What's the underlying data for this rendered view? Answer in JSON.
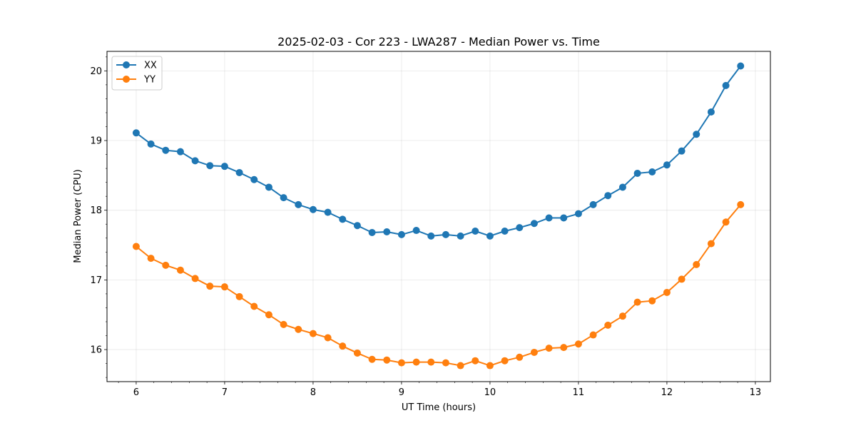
{
  "chart_data": {
    "type": "line",
    "title": "2025-02-03 - Cor 223 - LWA287 - Median Power vs. Time",
    "xlabel": "UT Time (hours)",
    "ylabel": "Median Power (CPU)",
    "xlim": [
      5.67,
      13.17
    ],
    "ylim": [
      15.54,
      20.28
    ],
    "xticks": [
      6,
      7,
      8,
      9,
      10,
      11,
      12,
      13
    ],
    "yticks": [
      16,
      17,
      18,
      19,
      20
    ],
    "grid": true,
    "legend_position": "top-left",
    "x": [
      6.0,
      6.1667,
      6.3333,
      6.5,
      6.6667,
      6.8333,
      7.0,
      7.1667,
      7.3333,
      7.5,
      7.6667,
      7.8333,
      8.0,
      8.1667,
      8.3333,
      8.5,
      8.6667,
      8.8333,
      9.0,
      9.1667,
      9.3333,
      9.5,
      9.6667,
      9.8333,
      10.0,
      10.1667,
      10.3333,
      10.5,
      10.6667,
      10.8333,
      11.0,
      11.1667,
      11.3333,
      11.5,
      11.6667,
      11.8333,
      12.0,
      12.1667,
      12.3333,
      12.5,
      12.6667,
      12.8333
    ],
    "series": [
      {
        "name": "XX",
        "color": "#1f77b4",
        "values": [
          19.11,
          18.95,
          18.86,
          18.84,
          18.71,
          18.64,
          18.63,
          18.54,
          18.44,
          18.33,
          18.18,
          18.08,
          18.01,
          17.97,
          17.87,
          17.78,
          17.68,
          17.69,
          17.65,
          17.71,
          17.63,
          17.65,
          17.63,
          17.7,
          17.63,
          17.7,
          17.75,
          17.81,
          17.89,
          17.89,
          17.95,
          18.08,
          18.21,
          18.33,
          18.53,
          18.55,
          18.65,
          18.85,
          19.09,
          19.41,
          19.79,
          20.07
        ]
      },
      {
        "name": "YY",
        "color": "#ff7f0e",
        "values": [
          17.48,
          17.31,
          17.21,
          17.14,
          17.02,
          16.91,
          16.9,
          16.76,
          16.62,
          16.5,
          16.36,
          16.29,
          16.23,
          16.17,
          16.05,
          15.95,
          15.86,
          15.85,
          15.81,
          15.82,
          15.82,
          15.81,
          15.77,
          15.84,
          15.77,
          15.84,
          15.89,
          15.96,
          16.02,
          16.03,
          16.08,
          16.21,
          16.35,
          16.48,
          16.68,
          16.7,
          16.82,
          17.01,
          17.22,
          17.52,
          17.83,
          18.08
        ]
      }
    ]
  }
}
